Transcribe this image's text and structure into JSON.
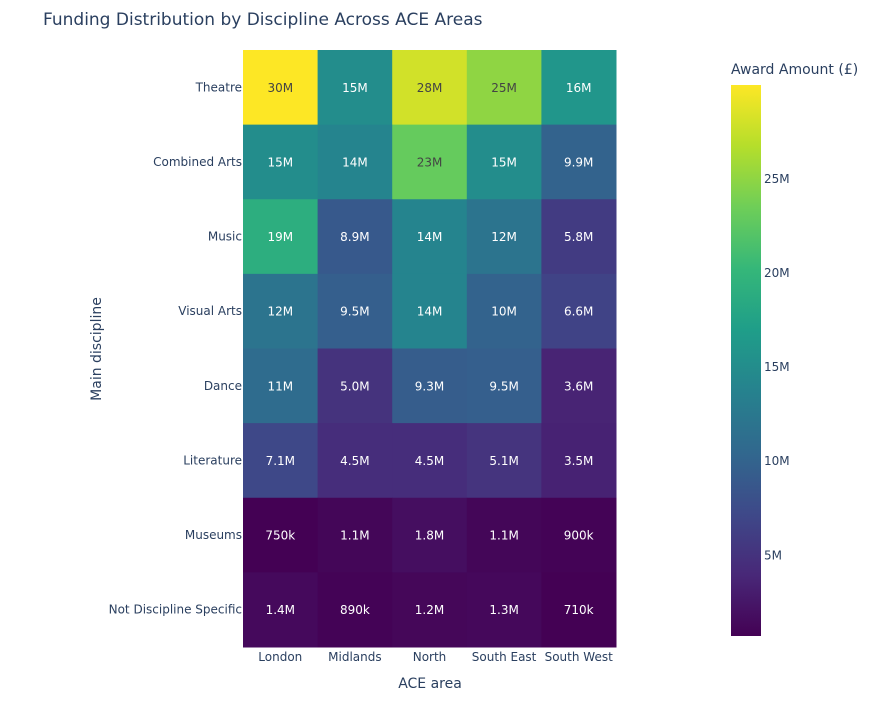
{
  "chart_data": {
    "type": "heatmap",
    "title": "Funding Distribution by Discipline Across ACE Areas",
    "xlabel": "ACE area",
    "ylabel": "Main discipline",
    "x_categories": [
      "London",
      "Midlands",
      "North",
      "South East",
      "South West"
    ],
    "y_categories": [
      "Theatre",
      "Combined Arts",
      "Music",
      "Visual Arts",
      "Dance",
      "Literature",
      "Museums",
      "Not Discipline Specific"
    ],
    "values": [
      [
        30000000,
        15000000,
        28000000,
        25000000,
        16000000
      ],
      [
        15000000,
        14000000,
        23000000,
        15000000,
        9900000
      ],
      [
        19000000,
        8900000,
        14000000,
        12000000,
        5800000
      ],
      [
        12000000,
        9500000,
        14000000,
        10000000,
        6600000
      ],
      [
        11000000,
        5000000,
        9300000,
        9500000,
        3600000
      ],
      [
        7100000,
        4500000,
        4500000,
        5100000,
        3500000
      ],
      [
        750000,
        1100000,
        1800000,
        1100000,
        900000
      ],
      [
        1400000,
        890000,
        1200000,
        1300000,
        710000
      ]
    ],
    "labels": [
      [
        "30M",
        "15M",
        "28M",
        "25M",
        "16M"
      ],
      [
        "15M",
        "14M",
        "23M",
        "15M",
        "9.9M"
      ],
      [
        "19M",
        "8.9M",
        "14M",
        "12M",
        "5.8M"
      ],
      [
        "12M",
        "9.5M",
        "14M",
        "10M",
        "6.6M"
      ],
      [
        "11M",
        "5.0M",
        "9.3M",
        "9.5M",
        "3.6M"
      ],
      [
        "7.1M",
        "4.5M",
        "4.5M",
        "5.1M",
        "3.5M"
      ],
      [
        "750k",
        "1.1M",
        "1.8M",
        "1.1M",
        "900k"
      ],
      [
        "1.4M",
        "890k",
        "1.2M",
        "1.3M",
        "710k"
      ]
    ],
    "colorbar": {
      "title": "Award Amount (£)",
      "range": [
        710000,
        30000000
      ],
      "ticks": [
        5000000,
        10000000,
        15000000,
        20000000,
        25000000
      ],
      "tick_labels": [
        "5M",
        "10M",
        "15M",
        "20M",
        "25M"
      ]
    },
    "colorscale": "viridis",
    "colorscale_stops": [
      "#440154",
      "#482878",
      "#3e4989",
      "#31688e",
      "#26828e",
      "#1f9e89",
      "#35b779",
      "#6ece58",
      "#b5de2b",
      "#fde725"
    ]
  }
}
